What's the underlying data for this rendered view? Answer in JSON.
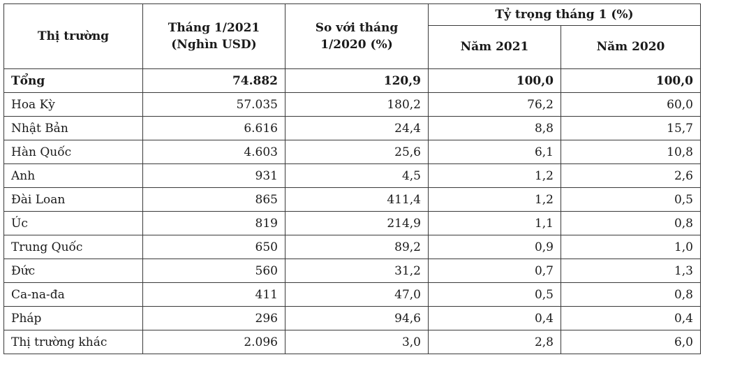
{
  "table": {
    "headers": {
      "market": "Thị trường",
      "jan2021_line1": "Tháng 1/2021",
      "jan2021_line2": "(Nghìn USD)",
      "vs_line1": "So với tháng",
      "vs_line2": "1/2020 (%)",
      "share": "Tỷ trọng tháng 1 (%)",
      "year2021": "Năm 2021",
      "year2020": "Năm 2020"
    },
    "rows": [
      {
        "name": "Tổng",
        "value": "74.882",
        "change": "120,9",
        "share2021": "100,0",
        "share2020": "100,0"
      },
      {
        "name": "Hoa Kỳ",
        "value": "57.035",
        "change": "180,2",
        "share2021": "76,2",
        "share2020": "60,0"
      },
      {
        "name": "Nhật Bản",
        "value": "6.616",
        "change": "24,4",
        "share2021": "8,8",
        "share2020": "15,7"
      },
      {
        "name": "Hàn Quốc",
        "value": "4.603",
        "change": "25,6",
        "share2021": "6,1",
        "share2020": "10,8"
      },
      {
        "name": "Anh",
        "value": "931",
        "change": "4,5",
        "share2021": "1,2",
        "share2020": "2,6"
      },
      {
        "name": "Đài Loan",
        "value": "865",
        "change": "411,4",
        "share2021": "1,2",
        "share2020": "0,5"
      },
      {
        "name": "Úc",
        "value": "819",
        "change": "214,9",
        "share2021": "1,1",
        "share2020": "0,8"
      },
      {
        "name": "Trung Quốc",
        "value": "650",
        "change": "89,2",
        "share2021": "0,9",
        "share2020": "1,0"
      },
      {
        "name": "Đức",
        "value": "560",
        "change": "31,2",
        "share2021": "0,7",
        "share2020": "1,3"
      },
      {
        "name": "Ca-na-đa",
        "value": "411",
        "change": "47,0",
        "share2021": "0,5",
        "share2020": "0,8"
      },
      {
        "name": "Pháp",
        "value": "296",
        "change": "94,6",
        "share2021": "0,4",
        "share2020": "0,4"
      },
      {
        "name": "Thị trường khác",
        "value": "2.096",
        "change": "3,0",
        "share2021": "2,8",
        "share2020": "6,0"
      }
    ]
  }
}
